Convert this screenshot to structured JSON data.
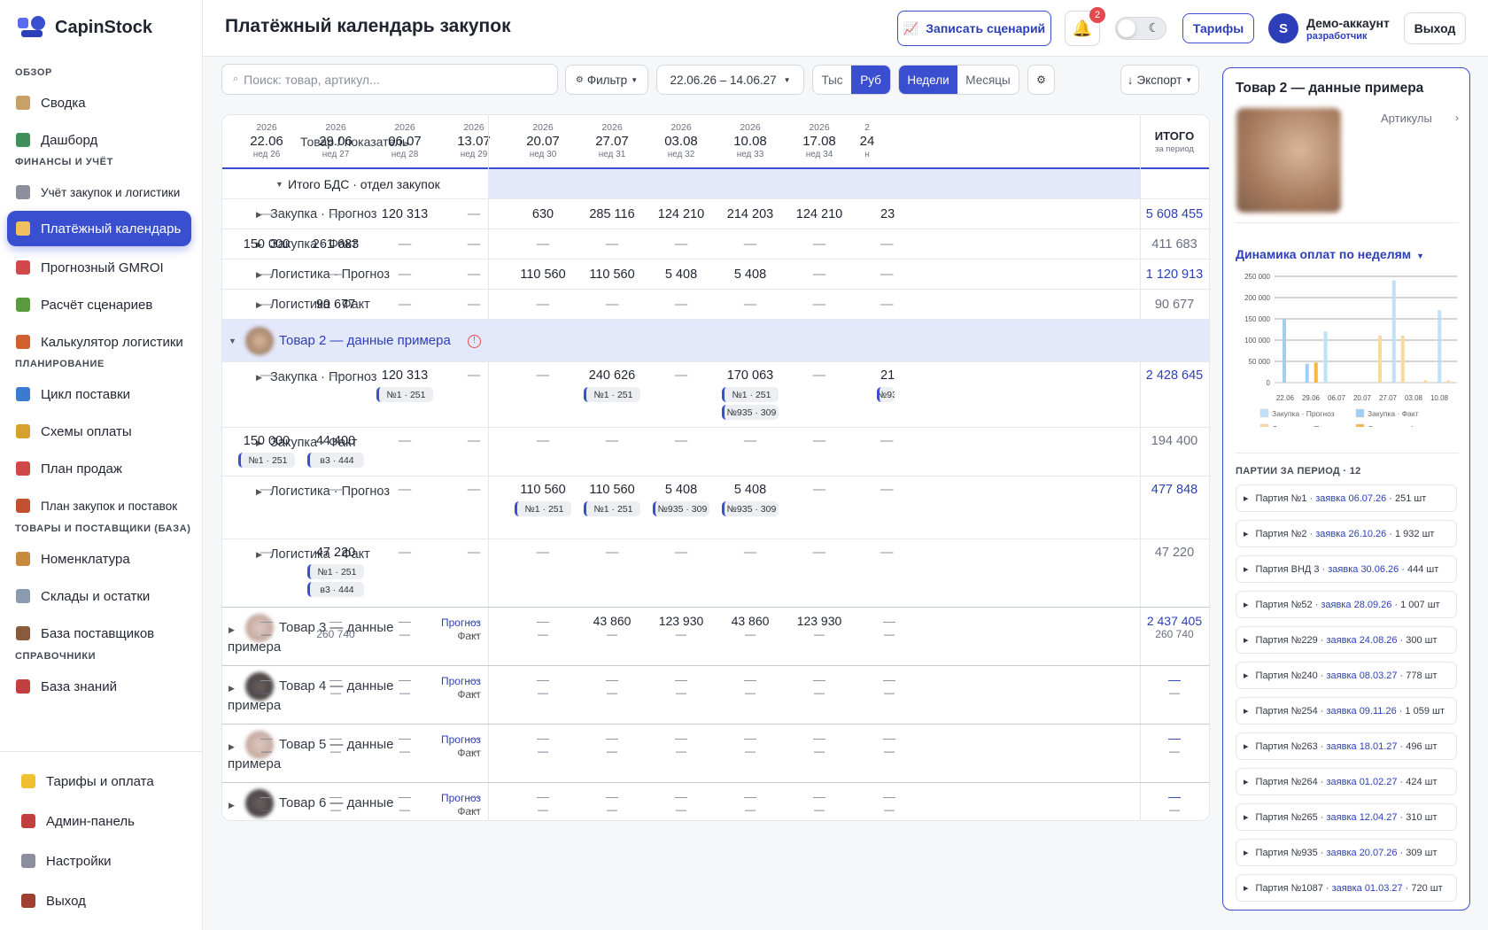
{
  "sidebar": {
    "logo": "CapinStock",
    "sections": {
      "overview": "ОБЗОР",
      "finance": "ФИНАНСЫ И УЧЁТ",
      "planning": "ПЛАНИРОВАНИЕ",
      "goods": "ТОВАРЫ И ПОСТАВЩИКИ (БАЗА)",
      "refs": "СПРАВОЧНИКИ"
    },
    "items": [
      {
        "label": "Сводка",
        "icon": "clipboard-icon"
      },
      {
        "label": "Дашборд",
        "icon": "bar-chart-icon"
      },
      {
        "label": "Учёт закупок и логистики",
        "icon": "receipt-icon"
      },
      {
        "label": "Платёжный календарь",
        "icon": "money-bag-icon"
      },
      {
        "label": "Прогнозный GMROI",
        "icon": "target-icon"
      },
      {
        "label": "Расчёт сценариев",
        "icon": "pencil-icon"
      },
      {
        "label": "Калькулятор логистики",
        "icon": "truck-icon"
      },
      {
        "label": "Цикл поставки",
        "icon": "cycle-icon"
      },
      {
        "label": "Схемы оплаты",
        "icon": "card-icon"
      },
      {
        "label": "План продаж",
        "icon": "trend-up-icon"
      },
      {
        "label": "План закупок и поставок",
        "icon": "boxes-icon"
      },
      {
        "label": "Номенклатура",
        "icon": "package-icon"
      },
      {
        "label": "Склады и остатки",
        "icon": "warehouse-icon"
      },
      {
        "label": "База поставщиков",
        "icon": "factory-icon"
      },
      {
        "label": "База знаний",
        "icon": "books-icon"
      }
    ],
    "footer": [
      {
        "label": "Тарифы и оплата",
        "icon": "star-icon"
      },
      {
        "label": "Админ-панель",
        "icon": "shield-icon"
      },
      {
        "label": "Настройки",
        "icon": "gear-icon"
      },
      {
        "label": "Выход",
        "icon": "door-icon"
      }
    ]
  },
  "header": {
    "title": "Платёжный календарь закупок",
    "record_btn": "Записать сценарий",
    "notif_count": "2",
    "tariffs_btn": "Тарифы",
    "avatar": "S",
    "user": "Демо-аккаунт",
    "role": "разработчик",
    "logout": "Выход"
  },
  "toolbar": {
    "search_placeholder": "Поиск: товар, артикул...",
    "filter": "Фильтр",
    "date_range": "22.06.26 – 14.06.27",
    "units": [
      "Тыс",
      "Руб"
    ],
    "period": [
      "Недели",
      "Месяцы"
    ],
    "export": "Экспорт"
  },
  "table": {
    "col_label": "Товар / показатель",
    "total_label": "ИТОГО",
    "total_sub": "за период",
    "columns": [
      {
        "y": "2026",
        "d": "22.06",
        "w": "нед 26"
      },
      {
        "y": "2026",
        "d": "29.06",
        "w": "нед 27"
      },
      {
        "y": "2026",
        "d": "06.07",
        "w": "нед 28"
      },
      {
        "y": "2026",
        "d": "13.07",
        "w": "нед 29"
      },
      {
        "y": "2026",
        "d": "20.07",
        "w": "нед 30"
      },
      {
        "y": "2026",
        "d": "27.07",
        "w": "нед 31"
      },
      {
        "y": "2026",
        "d": "03.08",
        "w": "нед 32"
      },
      {
        "y": "2026",
        "d": "10.08",
        "w": "нед 33"
      },
      {
        "y": "2026",
        "d": "17.08",
        "w": "нед 34"
      },
      {
        "y": "2",
        "d": "24",
        "w": "н"
      }
    ],
    "group1": "Итого БДС · отдел закупок",
    "g1rows": [
      {
        "label": "Закупка · Прогноз",
        "vals": [
          "—",
          "—",
          "120 313",
          "—",
          "630",
          "285 116",
          "124 210",
          "214 203",
          "124 210",
          "23"
        ],
        "total": "5 608 455",
        "tl": true
      },
      {
        "label": "Закупка · Факт",
        "vals": [
          "150 000",
          "261 683",
          "—",
          "—",
          "—",
          "—",
          "—",
          "—",
          "—",
          "—"
        ],
        "total": "411 683",
        "tl": false
      },
      {
        "label": "Логистика · Прогноз",
        "vals": [
          "—",
          "—",
          "—",
          "—",
          "110 560",
          "110 560",
          "5 408",
          "5 408",
          "—",
          "—"
        ],
        "total": "1 120 913",
        "tl": true
      },
      {
        "label": "Логистика · Факт",
        "vals": [
          "—",
          "90 677",
          "—",
          "—",
          "—",
          "—",
          "—",
          "—",
          "—",
          "—"
        ],
        "total": "90 677",
        "tl": false
      }
    ],
    "group2": "Товар 2 — данные примера",
    "g2rows": [
      {
        "label": "Закупка · Прогноз",
        "vals": [
          "—",
          "—",
          "120 313",
          "—",
          "—",
          "240 626",
          "—",
          "170 063",
          "—",
          "21"
        ],
        "total": "2 428 645",
        "tl": true,
        "tags": [
          {
            "c": 2,
            "t": [
              "№1 · 251"
            ]
          },
          {
            "c": 5,
            "t": [
              "№1 · 251"
            ]
          },
          {
            "c": 7,
            "t": [
              "№1 · 251",
              "№935 · 309"
            ]
          },
          {
            "c": 9,
            "t": [
              "№93"
            ]
          }
        ]
      },
      {
        "label": "Закупка · Факт",
        "vals": [
          "150 000",
          "44 400",
          "—",
          "—",
          "—",
          "—",
          "—",
          "—",
          "—",
          "—"
        ],
        "total": "194 400",
        "tl": false,
        "tags": [
          {
            "c": 0,
            "t": [
              "№1 · 251"
            ]
          },
          {
            "c": 1,
            "t": [
              "в3 · 444"
            ]
          }
        ]
      },
      {
        "label": "Логистика · Прогноз",
        "vals": [
          "—",
          "—",
          "—",
          "—",
          "110 560",
          "110 560",
          "5 408",
          "5 408",
          "—",
          "—"
        ],
        "total": "477 848",
        "tl": true,
        "tags": [
          {
            "c": 4,
            "t": [
              "№1 · 251"
            ]
          },
          {
            "c": 5,
            "t": [
              "№1 · 251"
            ]
          },
          {
            "c": 6,
            "t": [
              "№935 · 309"
            ]
          },
          {
            "c": 7,
            "t": [
              "№935 · 309"
            ]
          }
        ]
      },
      {
        "label": "Логистика · Факт",
        "vals": [
          "—",
          "47 220",
          "—",
          "—",
          "—",
          "—",
          "—",
          "—",
          "—",
          "—"
        ],
        "total": "47 220",
        "tl": false,
        "tags": [
          {
            "c": 1,
            "t": [
              "№1 · 251",
              "в3 · 444"
            ]
          }
        ]
      }
    ],
    "pf": {
      "p": "Прогноз",
      "f": "Факт"
    },
    "products": [
      {
        "label": "Товар 3 — данные примера",
        "pv": [
          "—",
          "—",
          "—",
          "—",
          "—",
          "43 860",
          "123 930",
          "43 860",
          "123 930",
          "—"
        ],
        "fv": [
          "—",
          "260 740",
          "—",
          "—",
          "—",
          "—",
          "—",
          "—",
          "—",
          "—"
        ],
        "tp": "2 437 405",
        "tf": "260 740"
      },
      {
        "label": "Товар 4 — данные примера",
        "pv": [
          "—",
          "—",
          "—",
          "—",
          "—",
          "—",
          "—",
          "—",
          "—",
          "—"
        ],
        "fv": [
          "—",
          "—",
          "—",
          "—",
          "—",
          "—",
          "—",
          "—",
          "—",
          "—"
        ],
        "tp": "—",
        "tf": "—"
      },
      {
        "label": "Товар 5 — данные примера",
        "pv": [
          "—",
          "—",
          "—",
          "—",
          "—",
          "—",
          "—",
          "—",
          "—",
          "—"
        ],
        "fv": [
          "—",
          "—",
          "—",
          "—",
          "—",
          "—",
          "—",
          "—",
          "—",
          "—"
        ],
        "tp": "—",
        "tf": "—"
      },
      {
        "label": "Товар 6 — данные",
        "pv": [
          "—",
          "—",
          "—",
          "—",
          "—",
          "—",
          "—",
          "—",
          "—",
          "—"
        ],
        "fv": [
          "—",
          "—",
          "—",
          "—",
          "—",
          "—",
          "—",
          "—",
          "—",
          "—"
        ],
        "tp": "—",
        "tf": "—"
      }
    ]
  },
  "panel": {
    "title": "Товар 2 — данные примера",
    "articles": "Артикулы",
    "dyn_title": "Динамика оплат по неделям",
    "parties_title": "ПАРТИИ ЗА ПЕРИОД · 12",
    "parties": [
      {
        "n": "Партия №1",
        "z": "· заявка 06.07.26",
        "q": "· 251 шт"
      },
      {
        "n": "Партия №2",
        "z": "· заявка 26.10.26",
        "q": "· 1 932 шт"
      },
      {
        "n": "Партия ВНД 3",
        "z": "· заявка 30.06.26",
        "q": "· 444 шт"
      },
      {
        "n": "Партия №52",
        "z": "· заявка 28.09.26",
        "q": "· 1 007 шт"
      },
      {
        "n": "Партия №229",
        "z": "· заявка 24.08.26",
        "q": "· 300 шт"
      },
      {
        "n": "Партия №240",
        "z": "· заявка 08.03.27",
        "q": "· 778 шт"
      },
      {
        "n": "Партия №254",
        "z": "· заявка 09.11.26",
        "q": "· 1 059 шт"
      },
      {
        "n": "Партия №263",
        "z": "· заявка 18.01.27",
        "q": "· 496 шт"
      },
      {
        "n": "Партия №264",
        "z": "· заявка 01.02.27",
        "q": "· 424 шт"
      },
      {
        "n": "Партия №265",
        "z": "· заявка 12.04.27",
        "q": "· 310 шт"
      },
      {
        "n": "Партия №935",
        "z": "· заявка 20.07.26",
        "q": "· 309 шт"
      },
      {
        "n": "Партия №1087",
        "z": "· заявка 01.03.27",
        "q": "· 720 шт"
      }
    ]
  },
  "chart_data": {
    "type": "bar",
    "categories": [
      "22.06",
      "29.06",
      "06.07",
      "13.07",
      "20.07",
      "27.07",
      "03.08",
      "10.08"
    ],
    "x_ticks": [
      "22.06",
      "29.06",
      "06.07",
      "20.07",
      "27.07",
      "03.08",
      "10.08"
    ],
    "ylim": [
      0,
      250000
    ],
    "y_ticks": [
      "250 000",
      "200 000",
      "150 000",
      "100 000",
      "50 000",
      "0"
    ],
    "series": [
      {
        "name": "Закупка · Прогноз",
        "color": "#bfe0f7",
        "values": [
          0,
          0,
          120313,
          0,
          0,
          240626,
          0,
          170063
        ]
      },
      {
        "name": "Закупка · Факт",
        "color": "#9fd0f2",
        "values": [
          150000,
          44400,
          0,
          0,
          0,
          0,
          0,
          0
        ]
      },
      {
        "name": "Логистика · Прогноз",
        "color": "#fbd8a0",
        "values": [
          0,
          0,
          0,
          0,
          110560,
          110560,
          5408,
          5408
        ]
      },
      {
        "name": "Логистика · Факт",
        "color": "#f4b64a",
        "values": [
          0,
          47220,
          0,
          0,
          0,
          0,
          0,
          0
        ]
      }
    ],
    "legend": "bottom",
    "grid": true
  }
}
